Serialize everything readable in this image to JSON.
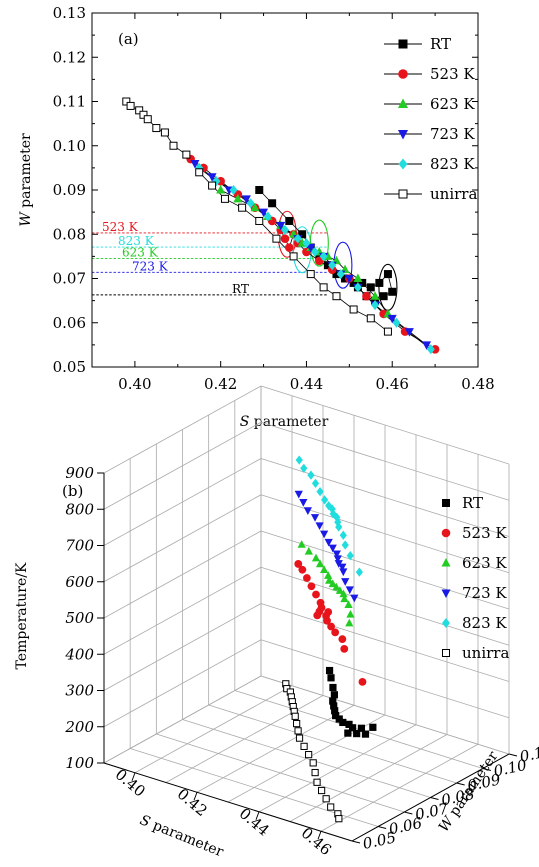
{
  "chart_data": [
    {
      "type": "line",
      "panel_label": "(a)",
      "xlabel_var": "S",
      "xlabel_rest": " parameter",
      "ylabel_var": "W",
      "ylabel_rest": " parameter",
      "xlim": [
        0.39,
        0.48
      ],
      "ylim": [
        0.05,
        0.13
      ],
      "xticks": [
        "0.40",
        "0.42",
        "0.44",
        "0.46",
        "0.48"
      ],
      "yticks": [
        "0.05",
        "0.06",
        "0.07",
        "0.08",
        "0.09",
        "0.10",
        "0.11",
        "0.12",
        "0.13"
      ],
      "legend_position": "top-right",
      "series": [
        {
          "name": "RT",
          "color": "#000000",
          "marker": "square-filled",
          "x": [
            0.429,
            0.432,
            0.436,
            0.439,
            0.441,
            0.443,
            0.445,
            0.447,
            0.449,
            0.451,
            0.453,
            0.455,
            0.457,
            0.459,
            0.46,
            0.458,
            0.456,
            0.454,
            0.452
          ],
          "y": [
            0.09,
            0.087,
            0.083,
            0.08,
            0.077,
            0.075,
            0.073,
            0.071,
            0.07,
            0.069,
            0.069,
            0.068,
            0.069,
            0.071,
            0.067,
            0.066,
            0.065,
            0.066,
            0.068
          ]
        },
        {
          "name": "523 K",
          "color": "#e8141c",
          "marker": "circle-filled",
          "x": [
            0.413,
            0.416,
            0.42,
            0.424,
            0.428,
            0.432,
            0.434,
            0.435,
            0.436,
            0.437,
            0.438,
            0.44,
            0.443,
            0.446,
            0.45,
            0.454,
            0.458,
            0.463,
            0.47
          ],
          "y": [
            0.097,
            0.095,
            0.092,
            0.089,
            0.086,
            0.083,
            0.081,
            0.079,
            0.077,
            0.08,
            0.078,
            0.076,
            0.074,
            0.072,
            0.07,
            0.066,
            0.062,
            0.058,
            0.054
          ]
        },
        {
          "name": "623 K",
          "color": "#22cc22",
          "marker": "triangle-up",
          "x": [
            0.42,
            0.424,
            0.428,
            0.431,
            0.434,
            0.437,
            0.439,
            0.441,
            0.443,
            0.445,
            0.447,
            0.449,
            0.452,
            0.456,
            0.459
          ],
          "y": [
            0.09,
            0.088,
            0.086,
            0.084,
            0.082,
            0.08,
            0.078,
            0.077,
            0.076,
            0.075,
            0.074,
            0.072,
            0.07,
            0.066,
            0.062
          ]
        },
        {
          "name": "723 K",
          "color": "#1a1ae6",
          "marker": "triangle-down",
          "x": [
            0.414,
            0.418,
            0.422,
            0.426,
            0.43,
            0.434,
            0.438,
            0.441,
            0.444,
            0.446,
            0.448,
            0.45,
            0.452,
            0.456,
            0.46,
            0.464,
            0.468
          ],
          "y": [
            0.096,
            0.093,
            0.09,
            0.088,
            0.085,
            0.082,
            0.079,
            0.077,
            0.075,
            0.073,
            0.071,
            0.07,
            0.068,
            0.064,
            0.061,
            0.058,
            0.055
          ]
        },
        {
          "name": "823 K",
          "color": "#22dddd",
          "marker": "diamond",
          "x": [
            0.415,
            0.419,
            0.423,
            0.427,
            0.431,
            0.435,
            0.438,
            0.44,
            0.442,
            0.444,
            0.446,
            0.448,
            0.452,
            0.456,
            0.461,
            0.469
          ],
          "y": [
            0.095,
            0.092,
            0.09,
            0.087,
            0.084,
            0.081,
            0.079,
            0.078,
            0.076,
            0.075,
            0.073,
            0.071,
            0.068,
            0.064,
            0.06,
            0.054
          ]
        },
        {
          "name": "unirra",
          "color": "#000000",
          "marker": "square-open",
          "x": [
            0.398,
            0.399,
            0.401,
            0.402,
            0.403,
            0.405,
            0.407,
            0.409,
            0.412,
            0.415,
            0.418,
            0.421,
            0.425,
            0.429,
            0.433,
            0.437,
            0.441,
            0.444,
            0.447,
            0.451,
            0.455,
            0.459
          ],
          "y": [
            0.11,
            0.109,
            0.108,
            0.107,
            0.106,
            0.104,
            0.103,
            0.1,
            0.098,
            0.094,
            0.091,
            0.088,
            0.086,
            0.083,
            0.079,
            0.075,
            0.071,
            0.068,
            0.066,
            0.063,
            0.061,
            0.058
          ]
        }
      ],
      "reference_lines": [
        {
          "label": "523 K",
          "y": 0.0803,
          "color": "#e8141c"
        },
        {
          "label": "823 K",
          "y": 0.0771,
          "color": "#22dddd"
        },
        {
          "label": "623 K",
          "y": 0.0745,
          "color": "#22cc22"
        },
        {
          "label": "723 K",
          "y": 0.0714,
          "color": "#1a1ae6"
        },
        {
          "label": "RT",
          "y": 0.0663,
          "color": "#000000"
        }
      ],
      "ellipses": [
        {
          "cx": 0.4355,
          "cy": 0.08,
          "color": "#e8141c"
        },
        {
          "cx": 0.439,
          "cy": 0.0765,
          "color": "#22dddd"
        },
        {
          "cx": 0.443,
          "cy": 0.078,
          "color": "#22cc22"
        },
        {
          "cx": 0.4485,
          "cy": 0.073,
          "color": "#1a1ae6"
        },
        {
          "cx": 0.459,
          "cy": 0.068,
          "color": "#000000"
        }
      ]
    },
    {
      "type": "scatter",
      "panel_label": "(b)",
      "xlabel_var": "S",
      "xlabel_rest": " parameter",
      "ylabel_var": "W",
      "ylabel_rest": " parameter",
      "zlabel": "Temperature/K",
      "xlim": [
        0.39,
        0.47
      ],
      "ylim": [
        0.05,
        0.11
      ],
      "zlim": [
        100,
        900
      ],
      "xticks": [
        "0.40",
        "0.42",
        "0.44",
        "0.46"
      ],
      "yticks": [
        "0.05",
        "0.06",
        "0.07",
        "0.08",
        "0.09",
        "0.10",
        "0.11"
      ],
      "zticks": [
        "100",
        "200",
        "300",
        "400",
        "500",
        "600",
        "700",
        "800",
        "900"
      ],
      "legend_position": "right",
      "series": [
        {
          "name": "RT",
          "color": "#000000",
          "marker": "square-filled",
          "z": 300,
          "x": [
            0.429,
            0.432,
            0.436,
            0.439,
            0.441,
            0.443,
            0.445,
            0.447,
            0.449,
            0.451,
            0.453,
            0.455,
            0.457,
            0.459,
            0.46,
            0.458,
            0.456
          ],
          "y": [
            0.09,
            0.087,
            0.083,
            0.08,
            0.077,
            0.075,
            0.073,
            0.071,
            0.07,
            0.069,
            0.069,
            0.068,
            0.069,
            0.071,
            0.067,
            0.066,
            0.065
          ]
        },
        {
          "name": "523 K",
          "color": "#e8141c",
          "marker": "circle-filled",
          "z": 523,
          "x": [
            0.413,
            0.416,
            0.42,
            0.424,
            0.428,
            0.432,
            0.434,
            0.435,
            0.436,
            0.437,
            0.438,
            0.44,
            0.443,
            0.446,
            0.45,
            0.454,
            0.47
          ],
          "y": [
            0.097,
            0.095,
            0.092,
            0.089,
            0.086,
            0.083,
            0.081,
            0.079,
            0.077,
            0.08,
            0.078,
            0.076,
            0.074,
            0.072,
            0.07,
            0.066,
            0.054
          ]
        },
        {
          "name": "623 K",
          "color": "#22cc22",
          "marker": "triangle-up",
          "z": 623,
          "x": [
            0.42,
            0.424,
            0.428,
            0.431,
            0.434,
            0.437,
            0.439,
            0.441,
            0.443,
            0.445,
            0.447,
            0.449,
            0.452,
            0.456,
            0.459
          ],
          "y": [
            0.09,
            0.088,
            0.086,
            0.084,
            0.082,
            0.08,
            0.078,
            0.077,
            0.076,
            0.075,
            0.074,
            0.072,
            0.07,
            0.066,
            0.062
          ]
        },
        {
          "name": "723 K",
          "color": "#1a1ae6",
          "marker": "triangle-down",
          "z": 723,
          "x": [
            0.414,
            0.418,
            0.422,
            0.426,
            0.43,
            0.434,
            0.438,
            0.441,
            0.444,
            0.446,
            0.448,
            0.45,
            0.452,
            0.456,
            0.46,
            0.464
          ],
          "y": [
            0.096,
            0.093,
            0.09,
            0.088,
            0.085,
            0.082,
            0.079,
            0.077,
            0.075,
            0.073,
            0.071,
            0.07,
            0.068,
            0.064,
            0.061,
            0.058
          ]
        },
        {
          "name": "823 K",
          "color": "#22dddd",
          "marker": "diamond",
          "z": 823,
          "x": [
            0.415,
            0.419,
            0.423,
            0.427,
            0.431,
            0.435,
            0.438,
            0.44,
            0.442,
            0.444,
            0.446,
            0.448,
            0.452,
            0.456,
            0.461,
            0.469
          ],
          "y": [
            0.095,
            0.092,
            0.09,
            0.087,
            0.084,
            0.081,
            0.079,
            0.078,
            0.076,
            0.075,
            0.073,
            0.071,
            0.068,
            0.064,
            0.06,
            0.054
          ]
        },
        {
          "name": "unirra",
          "color": "#000000",
          "marker": "square-open",
          "z": 100,
          "x": [
            0.398,
            0.4,
            0.402,
            0.404,
            0.406,
            0.408,
            0.41,
            0.412,
            0.415,
            0.418,
            0.421,
            0.425,
            0.429,
            0.433,
            0.437,
            0.441,
            0.445,
            0.449,
            0.453,
            0.457,
            0.459
          ],
          "y": [
            0.11,
            0.108,
            0.107,
            0.105,
            0.103,
            0.101,
            0.099,
            0.097,
            0.094,
            0.091,
            0.088,
            0.085,
            0.082,
            0.079,
            0.075,
            0.071,
            0.068,
            0.065,
            0.062,
            0.06,
            0.058
          ]
        }
      ]
    }
  ]
}
